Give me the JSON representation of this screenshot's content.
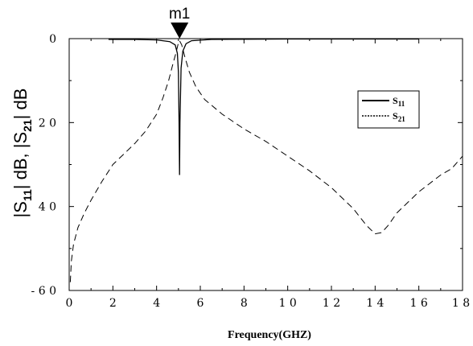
{
  "chart_data": {
    "type": "line",
    "xlabel": "Frequency(GHZ)",
    "ylabel_parts": [
      "|S",
      "11",
      "| dB, |S",
      "21",
      "| dB"
    ],
    "xlim": [
      0,
      18
    ],
    "ylim": [
      -60,
      0
    ],
    "x_ticks": [
      0,
      2,
      4,
      6,
      8,
      10,
      12,
      14,
      16,
      18
    ],
    "x_tick_labels": [
      "0",
      "2",
      "4",
      "6",
      "8",
      "1 0",
      "1 2",
      "1 4",
      "1 6",
      "1 8"
    ],
    "y_ticks": [
      0,
      -20,
      -40,
      -60
    ],
    "y_tick_labels": [
      "0",
      "2 0",
      "4 0",
      "- 6 0"
    ],
    "grid": false,
    "legend_position": "upper-right",
    "marker": {
      "label": "m1",
      "x": 5.05,
      "y": 0
    },
    "series": [
      {
        "name": "S11",
        "name_sub": "11",
        "style": "solid",
        "color": "#000000",
        "points": [
          [
            1.8,
            -0.2
          ],
          [
            3.0,
            -0.2
          ],
          [
            4.0,
            -0.3
          ],
          [
            4.6,
            -0.7
          ],
          [
            4.85,
            -1.5
          ],
          [
            4.95,
            -3.5
          ],
          [
            5.0,
            -8
          ],
          [
            5.03,
            -20
          ],
          [
            5.05,
            -32.5
          ],
          [
            5.07,
            -20
          ],
          [
            5.12,
            -7
          ],
          [
            5.2,
            -3
          ],
          [
            5.35,
            -1.2
          ],
          [
            5.6,
            -0.5
          ],
          [
            6.5,
            -0.2
          ],
          [
            10,
            -0.1
          ],
          [
            14,
            -0.1
          ],
          [
            16,
            -0.1
          ]
        ]
      },
      {
        "name": "S21",
        "name_sub": "21",
        "style": "dashed",
        "color": "#000000",
        "points": [
          [
            0.05,
            -58
          ],
          [
            0.1,
            -53
          ],
          [
            0.2,
            -49
          ],
          [
            0.4,
            -45
          ],
          [
            0.7,
            -41.5
          ],
          [
            1.0,
            -38.5
          ],
          [
            1.5,
            -34
          ],
          [
            2.0,
            -30
          ],
          [
            2.5,
            -27.5
          ],
          [
            3.0,
            -25
          ],
          [
            3.5,
            -22
          ],
          [
            4.0,
            -18
          ],
          [
            4.3,
            -14
          ],
          [
            4.55,
            -10
          ],
          [
            4.75,
            -6
          ],
          [
            4.88,
            -3.5
          ],
          [
            5.0,
            -1
          ],
          [
            5.05,
            -0.5
          ],
          [
            5.15,
            -1.5
          ],
          [
            5.3,
            -4.5
          ],
          [
            5.5,
            -8
          ],
          [
            5.8,
            -11.5
          ],
          [
            6.2,
            -14.5
          ],
          [
            7.0,
            -18
          ],
          [
            8.0,
            -21.5
          ],
          [
            9.0,
            -24.5
          ],
          [
            10.0,
            -28
          ],
          [
            11.0,
            -31.5
          ],
          [
            12.0,
            -35.5
          ],
          [
            13.0,
            -40.5
          ],
          [
            13.6,
            -44.5
          ],
          [
            14.0,
            -46.5
          ],
          [
            14.3,
            -46.2
          ],
          [
            14.6,
            -44.5
          ],
          [
            15.0,
            -41.5
          ],
          [
            16.0,
            -36.5
          ],
          [
            17.0,
            -32.5
          ],
          [
            17.5,
            -31
          ],
          [
            18.0,
            -28
          ]
        ]
      }
    ]
  }
}
